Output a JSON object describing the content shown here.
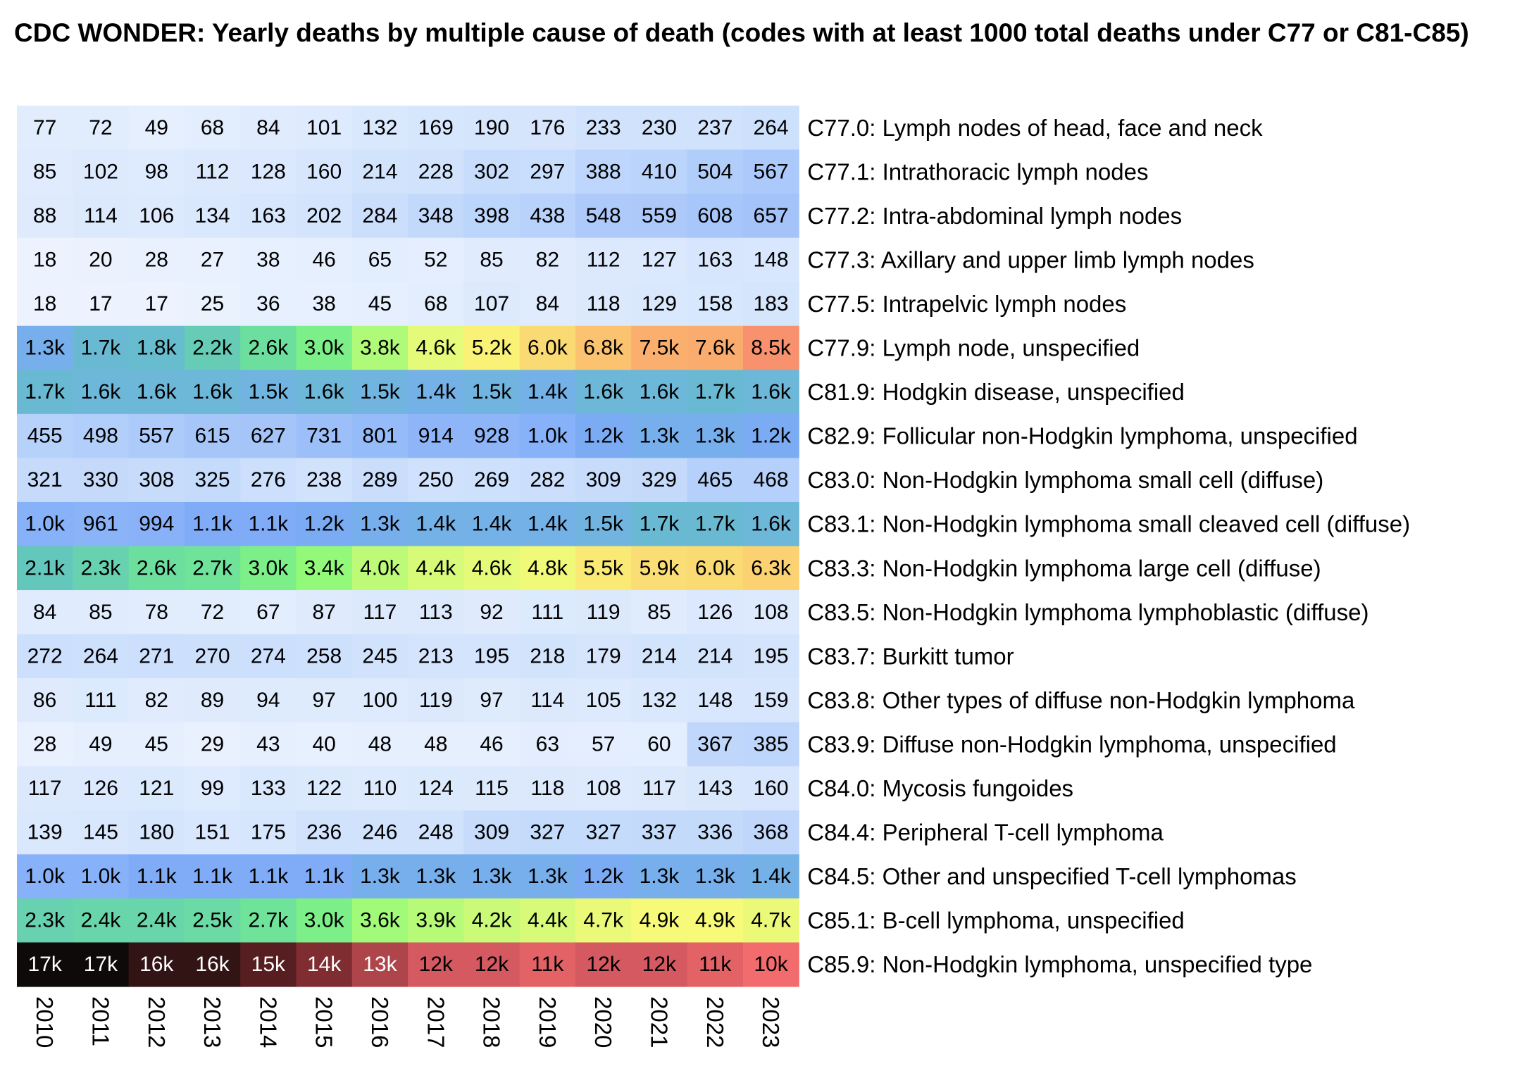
{
  "chart_data": {
    "type": "heatmap",
    "title": "CDC WONDER: Yearly deaths by multiple cause of death (codes with at least 1000 total deaths under C77 or C81-C85)",
    "x": [
      "2010",
      "2011",
      "2012",
      "2013",
      "2014",
      "2015",
      "2016",
      "2017",
      "2018",
      "2019",
      "2020",
      "2021",
      "2022",
      "2023"
    ],
    "rows": [
      {
        "label": "C77.0: Lymph nodes of head, face and neck",
        "values": [
          77,
          72,
          49,
          68,
          84,
          101,
          132,
          169,
          190,
          176,
          233,
          230,
          237,
          264
        ],
        "display": [
          "77",
          "72",
          "49",
          "68",
          "84",
          "101",
          "132",
          "169",
          "190",
          "176",
          "233",
          "230",
          "237",
          "264"
        ]
      },
      {
        "label": "C77.1: Intrathoracic lymph nodes",
        "values": [
          85,
          102,
          98,
          112,
          128,
          160,
          214,
          228,
          302,
          297,
          388,
          410,
          504,
          567
        ],
        "display": [
          "85",
          "102",
          "98",
          "112",
          "128",
          "160",
          "214",
          "228",
          "302",
          "297",
          "388",
          "410",
          "504",
          "567"
        ]
      },
      {
        "label": "C77.2: Intra-abdominal lymph nodes",
        "values": [
          88,
          114,
          106,
          134,
          163,
          202,
          284,
          348,
          398,
          438,
          548,
          559,
          608,
          657
        ],
        "display": [
          "88",
          "114",
          "106",
          "134",
          "163",
          "202",
          "284",
          "348",
          "398",
          "438",
          "548",
          "559",
          "608",
          "657"
        ]
      },
      {
        "label": "C77.3: Axillary and upper limb lymph nodes",
        "values": [
          18,
          20,
          28,
          27,
          38,
          46,
          65,
          52,
          85,
          82,
          112,
          127,
          163,
          148
        ],
        "display": [
          "18",
          "20",
          "28",
          "27",
          "38",
          "46",
          "65",
          "52",
          "85",
          "82",
          "112",
          "127",
          "163",
          "148"
        ]
      },
      {
        "label": "C77.5: Intrapelvic lymph nodes",
        "values": [
          18,
          17,
          17,
          25,
          36,
          38,
          45,
          68,
          107,
          84,
          118,
          129,
          158,
          183
        ],
        "display": [
          "18",
          "17",
          "17",
          "25",
          "36",
          "38",
          "45",
          "68",
          "107",
          "84",
          "118",
          "129",
          "158",
          "183"
        ]
      },
      {
        "label": "C77.9: Lymph node, unspecified",
        "values": [
          1300,
          1700,
          1800,
          2200,
          2600,
          3000,
          3800,
          4600,
          5200,
          6000,
          6800,
          7500,
          7600,
          8500
        ],
        "display": [
          "1.3k",
          "1.7k",
          "1.8k",
          "2.2k",
          "2.6k",
          "3.0k",
          "3.8k",
          "4.6k",
          "5.2k",
          "6.0k",
          "6.8k",
          "7.5k",
          "7.6k",
          "8.5k"
        ]
      },
      {
        "label": "C81.9: Hodgkin disease, unspecified",
        "values": [
          1700,
          1600,
          1600,
          1600,
          1500,
          1600,
          1500,
          1400,
          1500,
          1400,
          1600,
          1600,
          1700,
          1600
        ],
        "display": [
          "1.7k",
          "1.6k",
          "1.6k",
          "1.6k",
          "1.5k",
          "1.6k",
          "1.5k",
          "1.4k",
          "1.5k",
          "1.4k",
          "1.6k",
          "1.6k",
          "1.7k",
          "1.6k"
        ]
      },
      {
        "label": "C82.9: Follicular non-Hodgkin lymphoma, unspecified",
        "values": [
          455,
          498,
          557,
          615,
          627,
          731,
          801,
          914,
          928,
          1000,
          1200,
          1300,
          1300,
          1200
        ],
        "display": [
          "455",
          "498",
          "557",
          "615",
          "627",
          "731",
          "801",
          "914",
          "928",
          "1.0k",
          "1.2k",
          "1.3k",
          "1.3k",
          "1.2k"
        ]
      },
      {
        "label": "C83.0: Non-Hodgkin lymphoma small cell (diffuse)",
        "values": [
          321,
          330,
          308,
          325,
          276,
          238,
          289,
          250,
          269,
          282,
          309,
          329,
          465,
          468
        ],
        "display": [
          "321",
          "330",
          "308",
          "325",
          "276",
          "238",
          "289",
          "250",
          "269",
          "282",
          "309",
          "329",
          "465",
          "468"
        ]
      },
      {
        "label": "C83.1: Non-Hodgkin lymphoma small cleaved cell (diffuse)",
        "values": [
          1000,
          961,
          994,
          1100,
          1100,
          1200,
          1300,
          1400,
          1400,
          1400,
          1500,
          1700,
          1700,
          1600
        ],
        "display": [
          "1.0k",
          "961",
          "994",
          "1.1k",
          "1.1k",
          "1.2k",
          "1.3k",
          "1.4k",
          "1.4k",
          "1.4k",
          "1.5k",
          "1.7k",
          "1.7k",
          "1.6k"
        ]
      },
      {
        "label": "C83.3: Non-Hodgkin lymphoma large cell (diffuse)",
        "values": [
          2100,
          2300,
          2600,
          2700,
          3000,
          3400,
          4000,
          4400,
          4600,
          4800,
          5500,
          5900,
          6000,
          6300
        ],
        "display": [
          "2.1k",
          "2.3k",
          "2.6k",
          "2.7k",
          "3.0k",
          "3.4k",
          "4.0k",
          "4.4k",
          "4.6k",
          "4.8k",
          "5.5k",
          "5.9k",
          "6.0k",
          "6.3k"
        ]
      },
      {
        "label": "C83.5: Non-Hodgkin lymphoma lymphoblastic (diffuse)",
        "values": [
          84,
          85,
          78,
          72,
          67,
          87,
          117,
          113,
          92,
          111,
          119,
          85,
          126,
          108
        ],
        "display": [
          "84",
          "85",
          "78",
          "72",
          "67",
          "87",
          "117",
          "113",
          "92",
          "111",
          "119",
          "85",
          "126",
          "108"
        ]
      },
      {
        "label": "C83.7: Burkitt tumor",
        "values": [
          272,
          264,
          271,
          270,
          274,
          258,
          245,
          213,
          195,
          218,
          179,
          214,
          214,
          195
        ],
        "display": [
          "272",
          "264",
          "271",
          "270",
          "274",
          "258",
          "245",
          "213",
          "195",
          "218",
          "179",
          "214",
          "214",
          "195"
        ]
      },
      {
        "label": "C83.8: Other types of diffuse non-Hodgkin lymphoma",
        "values": [
          86,
          111,
          82,
          89,
          94,
          97,
          100,
          119,
          97,
          114,
          105,
          132,
          148,
          159
        ],
        "display": [
          "86",
          "111",
          "82",
          "89",
          "94",
          "97",
          "100",
          "119",
          "97",
          "114",
          "105",
          "132",
          "148",
          "159"
        ]
      },
      {
        "label": "C83.9: Diffuse non-Hodgkin lymphoma, unspecified",
        "values": [
          28,
          49,
          45,
          29,
          43,
          40,
          48,
          48,
          46,
          63,
          57,
          60,
          367,
          385
        ],
        "display": [
          "28",
          "49",
          "45",
          "29",
          "43",
          "40",
          "48",
          "48",
          "46",
          "63",
          "57",
          "60",
          "367",
          "385"
        ]
      },
      {
        "label": "C84.0: Mycosis fungoides",
        "values": [
          117,
          126,
          121,
          99,
          133,
          122,
          110,
          124,
          115,
          118,
          108,
          117,
          143,
          160
        ],
        "display": [
          "117",
          "126",
          "121",
          "99",
          "133",
          "122",
          "110",
          "124",
          "115",
          "118",
          "108",
          "117",
          "143",
          "160"
        ]
      },
      {
        "label": "C84.4: Peripheral T-cell lymphoma",
        "values": [
          139,
          145,
          180,
          151,
          175,
          236,
          246,
          248,
          309,
          327,
          327,
          337,
          336,
          368
        ],
        "display": [
          "139",
          "145",
          "180",
          "151",
          "175",
          "236",
          "246",
          "248",
          "309",
          "327",
          "327",
          "337",
          "336",
          "368"
        ]
      },
      {
        "label": "C84.5: Other and unspecified T-cell lymphomas",
        "values": [
          1000,
          1000,
          1100,
          1100,
          1100,
          1100,
          1300,
          1300,
          1300,
          1300,
          1200,
          1300,
          1300,
          1400
        ],
        "display": [
          "1.0k",
          "1.0k",
          "1.1k",
          "1.1k",
          "1.1k",
          "1.1k",
          "1.3k",
          "1.3k",
          "1.3k",
          "1.3k",
          "1.2k",
          "1.3k",
          "1.3k",
          "1.4k"
        ]
      },
      {
        "label": "C85.1: B-cell lymphoma, unspecified",
        "values": [
          2300,
          2400,
          2400,
          2500,
          2700,
          3000,
          3600,
          3900,
          4200,
          4400,
          4700,
          4900,
          4900,
          4700
        ],
        "display": [
          "2.3k",
          "2.4k",
          "2.4k",
          "2.5k",
          "2.7k",
          "3.0k",
          "3.6k",
          "3.9k",
          "4.2k",
          "4.4k",
          "4.7k",
          "4.9k",
          "4.9k",
          "4.7k"
        ]
      },
      {
        "label": "C85.9: Non-Hodgkin lymphoma, unspecified type",
        "values": [
          17000,
          17000,
          16000,
          16000,
          15000,
          14000,
          13000,
          12000,
          12000,
          11000,
          12000,
          12000,
          11000,
          10000
        ],
        "display": [
          "17k",
          "17k",
          "16k",
          "16k",
          "15k",
          "14k",
          "13k",
          "12k",
          "12k",
          "11k",
          "12k",
          "12k",
          "11k",
          "10k"
        ]
      }
    ],
    "color_scale": "square-root, white → blue → green → yellow → orange → red → black",
    "legend": "none"
  }
}
